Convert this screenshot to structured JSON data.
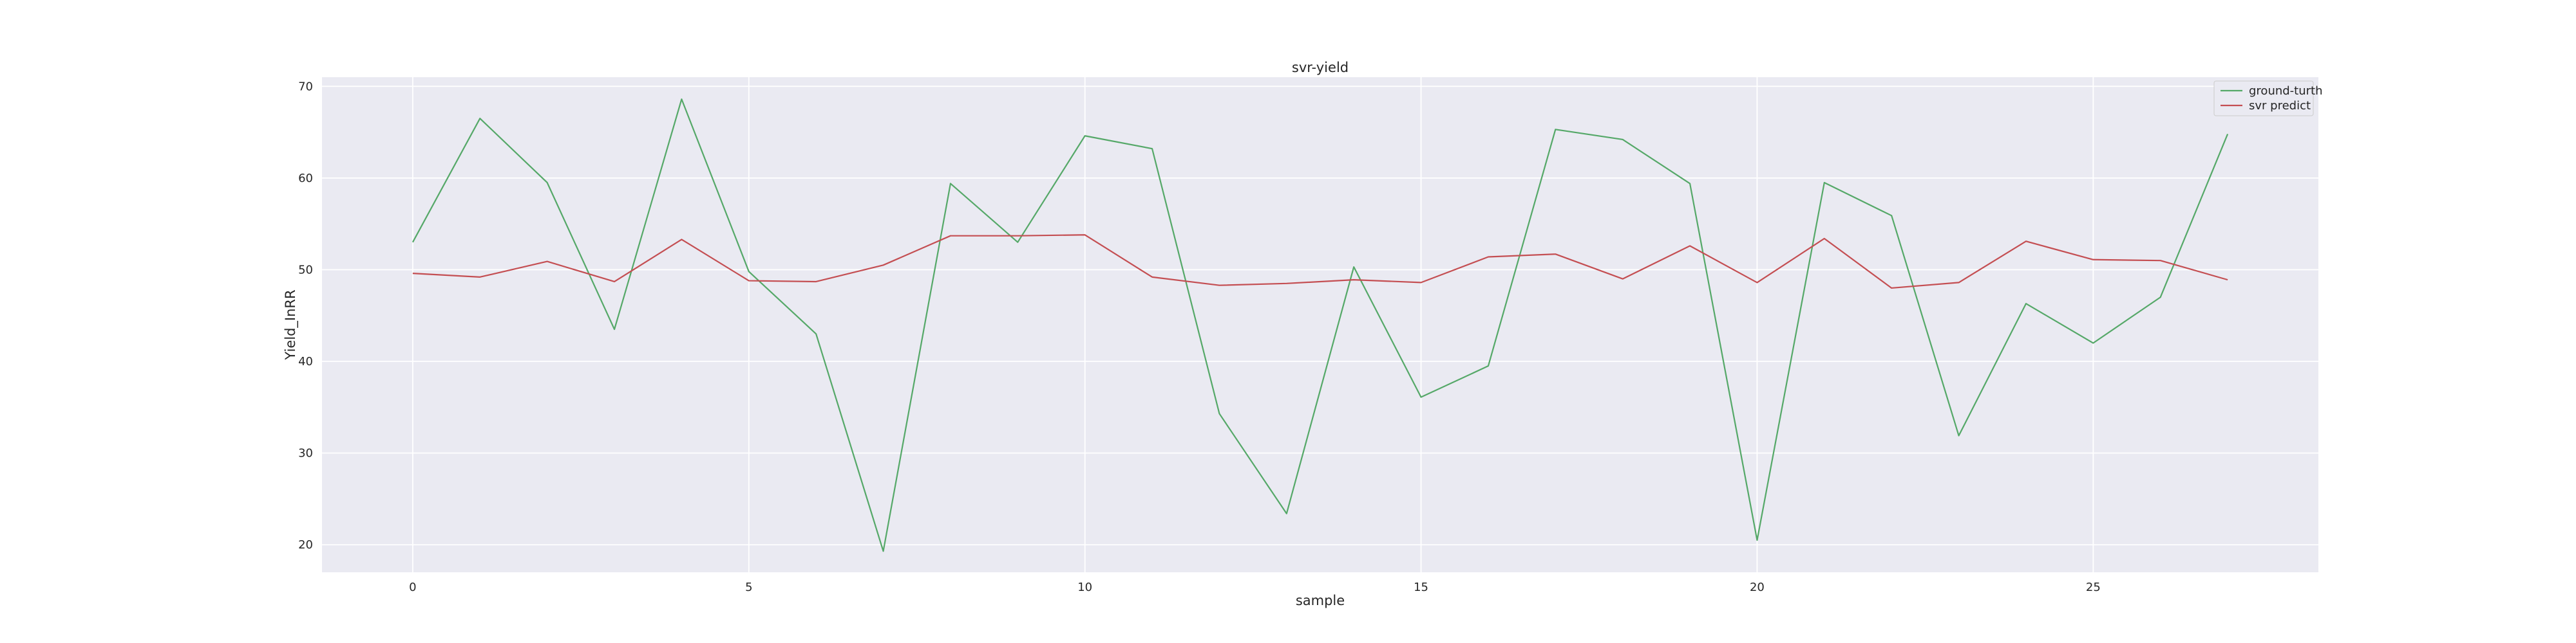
{
  "chart_data": {
    "type": "line",
    "title": "svr-yield",
    "xlabel": "sample",
    "ylabel": "Yield_InRR",
    "xlim": [
      -1.35,
      28.35
    ],
    "ylim": [
      17,
      71
    ],
    "xticks": [
      0,
      5,
      10,
      15,
      20,
      25
    ],
    "yticks": [
      20,
      30,
      40,
      50,
      60,
      70
    ],
    "grid": true,
    "legend_position": "top-right",
    "x": [
      0,
      1,
      2,
      3,
      4,
      5,
      6,
      7,
      8,
      9,
      10,
      11,
      12,
      13,
      14,
      15,
      16,
      17,
      18,
      19,
      20,
      21,
      22,
      23,
      24,
      25,
      26,
      27
    ],
    "series": [
      {
        "name": "ground-turth",
        "color": "#55a868",
        "values": [
          53.0,
          66.5,
          59.5,
          43.5,
          68.6,
          49.8,
          43.0,
          19.3,
          59.4,
          53.0,
          64.6,
          63.2,
          34.3,
          23.4,
          50.3,
          36.1,
          39.5,
          65.3,
          64.2,
          59.4,
          20.5,
          59.5,
          55.9,
          31.9,
          46.3,
          42.0,
          47.0,
          64.8
        ]
      },
      {
        "name": "svr predict",
        "color": "#c44e52",
        "values": [
          49.6,
          49.2,
          50.9,
          48.7,
          53.3,
          48.8,
          48.7,
          50.5,
          53.7,
          53.7,
          53.8,
          49.2,
          48.3,
          48.5,
          48.9,
          48.6,
          51.4,
          51.7,
          49.0,
          52.6,
          48.6,
          53.4,
          48.0,
          48.6,
          53.1,
          51.1,
          51.0,
          48.9
        ]
      }
    ]
  }
}
